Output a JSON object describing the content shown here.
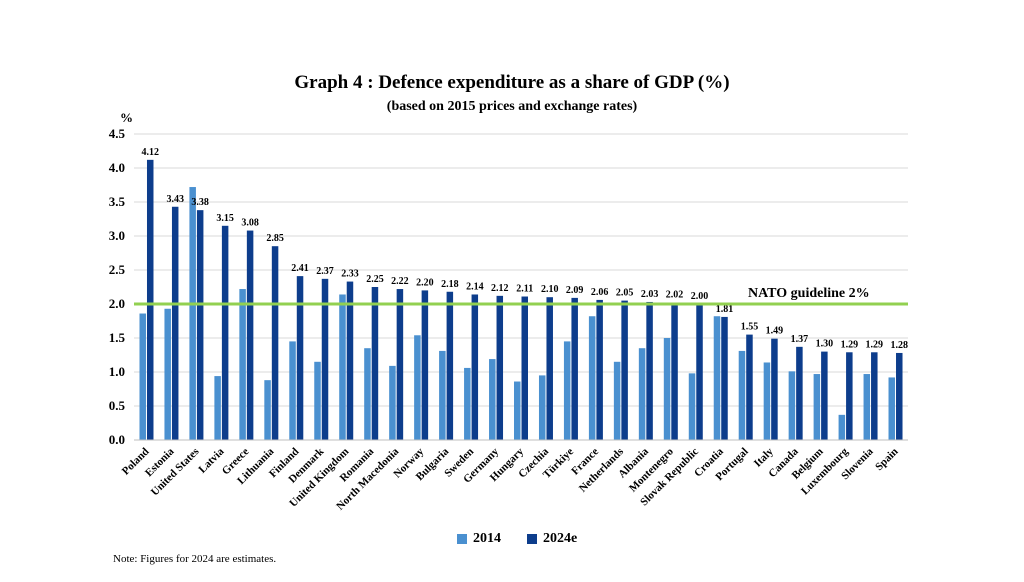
{
  "chart_data": {
    "type": "bar",
    "title": "Graph 4 : Defence expenditure as a share of GDP (%)",
    "subtitle": "(based on 2015 prices and exchange rates)",
    "ylabel": "%",
    "xlabel": "",
    "ylim": [
      0,
      4.5
    ],
    "yticks": [
      "0.0",
      "0.5",
      "1.0",
      "1.5",
      "2.0",
      "2.5",
      "3.0",
      "3.5",
      "4.0",
      "4.5"
    ],
    "grid": true,
    "categories": [
      "Poland",
      "Estonia",
      "United States",
      "Latvia",
      "Greece",
      "Lithuania",
      "Finland",
      "Denmark",
      "United Kingdom",
      "Romania",
      "North Macedonia",
      "Norway",
      "Bulgaria",
      "Sweden",
      "Germany",
      "Hungary",
      "Czechia",
      "Türkiye",
      "France",
      "Netherlands",
      "Albania",
      "Montenegro",
      "Slovak Republic",
      "Croatia",
      "Portugal",
      "Italy",
      "Canada",
      "Belgium",
      "Luxembourg",
      "Slovenia",
      "Spain"
    ],
    "series": [
      {
        "name": "2014",
        "color": "#4a90d0",
        "values": [
          1.86,
          1.93,
          3.72,
          0.94,
          2.22,
          0.88,
          1.45,
          1.15,
          2.14,
          1.35,
          1.09,
          1.54,
          1.31,
          1.06,
          1.19,
          0.86,
          0.95,
          1.45,
          1.82,
          1.15,
          1.35,
          1.5,
          0.98,
          1.82,
          1.31,
          1.14,
          1.01,
          0.97,
          0.37,
          0.97,
          0.92
        ]
      },
      {
        "name": "2024e",
        "color": "#0d3d8c",
        "values": [
          4.12,
          3.43,
          3.38,
          3.15,
          3.08,
          2.85,
          2.41,
          2.37,
          2.33,
          2.25,
          2.22,
          2.2,
          2.18,
          2.14,
          2.12,
          2.11,
          2.1,
          2.09,
          2.06,
          2.05,
          2.03,
          2.02,
          2.0,
          1.81,
          1.55,
          1.49,
          1.37,
          1.3,
          1.29,
          1.29,
          1.28
        ]
      }
    ],
    "data_labels": [
      "4.12",
      "3.43",
      "3.38",
      "3.15",
      "3.08",
      "2.85",
      "2.41",
      "2.37",
      "2.33",
      "2.25",
      "2.22",
      "2.20",
      "2.18",
      "2.14",
      "2.12",
      "2.11",
      "2.10",
      "2.09",
      "2.06",
      "2.05",
      "2.03",
      "2.02",
      "2.00",
      "1.81",
      "1.55",
      "1.49",
      "1.37",
      "1.30",
      "1.29",
      "1.29",
      "1.28"
    ],
    "reference_line": {
      "value": 2.0,
      "label": "NATO guideline 2%",
      "color": "#92d050"
    },
    "legend_position": "bottom-center",
    "note": "Note: Figures for 2024 are estimates."
  }
}
